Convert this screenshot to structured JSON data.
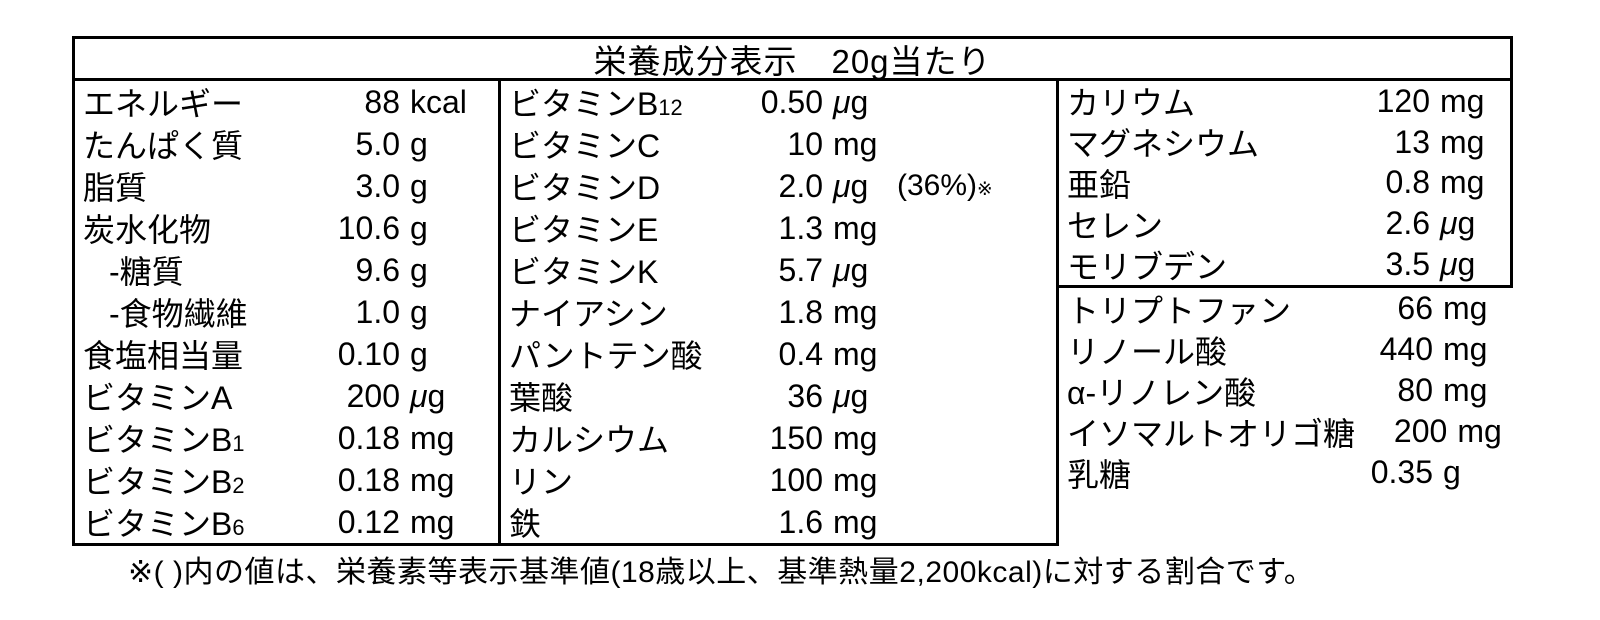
{
  "title": "栄養成分表示　20g当たり",
  "footnote": "※( )内の値は、栄養素等表示基準値(18歳以上、基準熱量2,200kcal)に対する割合です。",
  "colors": {
    "border": "#000000",
    "background": "#ffffff",
    "text": "#000000"
  },
  "table": {
    "left": [
      {
        "name": "エネルギー",
        "value": "88",
        "unit": "kcal"
      },
      {
        "name": "たんぱく質",
        "value": "5.0",
        "unit": "g"
      },
      {
        "name": "脂質",
        "value": "3.0",
        "unit": "g"
      },
      {
        "name": "炭水化物",
        "value": "10.6",
        "unit": "g"
      },
      {
        "name": "-糖質",
        "value": "9.6",
        "unit": "g",
        "indent": true
      },
      {
        "name": "-食物繊維",
        "value": "1.0",
        "unit": "g",
        "indent": true
      },
      {
        "name": "食塩相当量",
        "value": "0.10",
        "unit": "g"
      },
      {
        "name": "ビタミンA",
        "value": "200",
        "unit": "μg"
      },
      {
        "name": "ビタミンB",
        "sub": "1",
        "value": "0.18",
        "unit": "mg"
      },
      {
        "name": "ビタミンB",
        "sub": "2",
        "value": "0.18",
        "unit": "mg"
      },
      {
        "name": "ビタミンB",
        "sub": "6",
        "value": "0.12",
        "unit": "mg"
      }
    ],
    "middle": [
      {
        "name": "ビタミンB",
        "sub": "12",
        "value": "0.50",
        "unit": "μg"
      },
      {
        "name": "ビタミンC",
        "value": "10",
        "unit": "mg"
      },
      {
        "name": "ビタミンD",
        "value": "2.0",
        "unit": "μg",
        "note": "(36%)",
        "note_sup": "※"
      },
      {
        "name": "ビタミンE",
        "value": "1.3",
        "unit": "mg"
      },
      {
        "name": "ビタミンK",
        "value": "5.7",
        "unit": "μg"
      },
      {
        "name": "ナイアシン",
        "value": "1.8",
        "unit": "mg"
      },
      {
        "name": "パントテン酸",
        "value": "0.4",
        "unit": "mg"
      },
      {
        "name": "葉酸",
        "value": "36",
        "unit": "μg"
      },
      {
        "name": "カルシウム",
        "value": "150",
        "unit": "mg"
      },
      {
        "name": "リン",
        "value": "100",
        "unit": "mg"
      },
      {
        "name": "鉄",
        "value": "1.6",
        "unit": "mg"
      }
    ],
    "right_top": [
      {
        "name": "カリウム",
        "value": "120",
        "unit": "mg"
      },
      {
        "name": "マグネシウム",
        "value": "13",
        "unit": "mg"
      },
      {
        "name": "亜鉛",
        "value": "0.8",
        "unit": "mg"
      },
      {
        "name": "セレン",
        "value": "2.6",
        "unit": "μg"
      },
      {
        "name": "モリブデン",
        "value": "3.5",
        "unit": "μg"
      }
    ],
    "right_bottom": [
      {
        "name": "トリプトファン",
        "value": "66",
        "unit": "mg"
      },
      {
        "name": "リノール酸",
        "value": "440",
        "unit": "mg"
      },
      {
        "name": "α-リノレン酸",
        "value": "80",
        "unit": "mg"
      },
      {
        "name": "イソマルトオリゴ糖",
        "value": "200",
        "unit": "mg"
      },
      {
        "name": "乳糖",
        "value": "0.35",
        "unit": "g"
      }
    ]
  }
}
